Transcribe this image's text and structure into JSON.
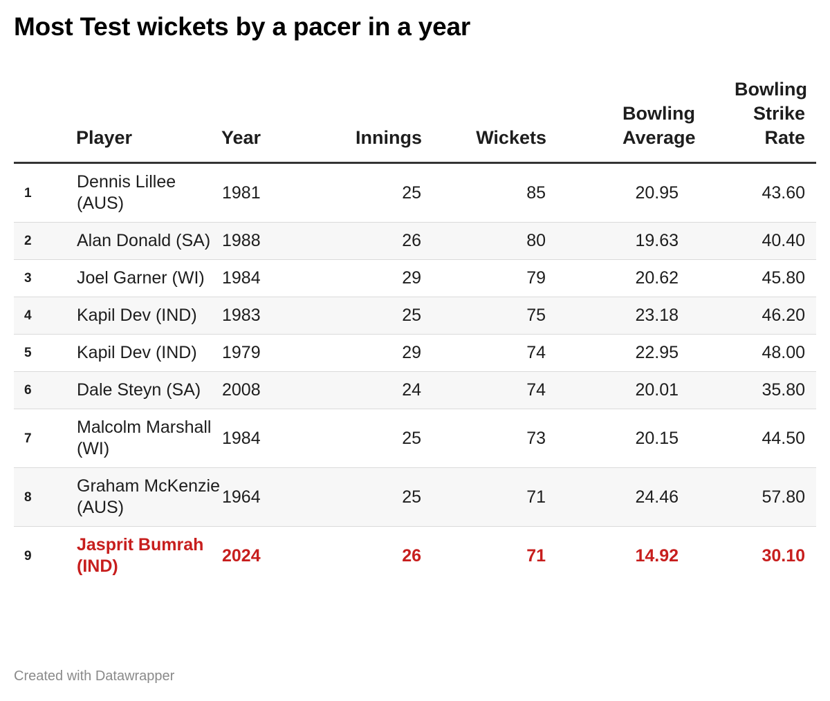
{
  "title": "Most Test wickets by a pacer in a year",
  "footer": "Created with Datawrapper",
  "colors": {
    "highlight": "#c71e1d",
    "stripe": "#f7f7f7",
    "text": "#1d1d1d"
  },
  "chart_data": {
    "type": "table",
    "title": "Most Test wickets by a pacer in a year",
    "columns": [
      "",
      "Player",
      "Year",
      "Innings",
      "Wickets",
      "Bowling Average",
      "Bowling Strike Rate"
    ],
    "rows": [
      {
        "rank": "1",
        "player": "Dennis Lillee (AUS)",
        "year": "1981",
        "innings": "25",
        "wickets": "85",
        "average": "20.95",
        "strike_rate": "43.60",
        "highlight": false
      },
      {
        "rank": "2",
        "player": "Alan Donald (SA)",
        "year": "1988",
        "innings": "26",
        "wickets": "80",
        "average": "19.63",
        "strike_rate": "40.40",
        "highlight": false
      },
      {
        "rank": "3",
        "player": "Joel Garner (WI)",
        "year": "1984",
        "innings": "29",
        "wickets": "79",
        "average": "20.62",
        "strike_rate": "45.80",
        "highlight": false
      },
      {
        "rank": "4",
        "player": "Kapil Dev (IND)",
        "year": "1983",
        "innings": "25",
        "wickets": "75",
        "average": "23.18",
        "strike_rate": "46.20",
        "highlight": false
      },
      {
        "rank": "5",
        "player": "Kapil Dev (IND)",
        "year": "1979",
        "innings": "29",
        "wickets": "74",
        "average": "22.95",
        "strike_rate": "48.00",
        "highlight": false
      },
      {
        "rank": "6",
        "player": "Dale Steyn (SA)",
        "year": "2008",
        "innings": "24",
        "wickets": "74",
        "average": "20.01",
        "strike_rate": "35.80",
        "highlight": false
      },
      {
        "rank": "7",
        "player": "Malcolm Marshall (WI)",
        "year": "1984",
        "innings": "25",
        "wickets": "73",
        "average": "20.15",
        "strike_rate": "44.50",
        "highlight": false
      },
      {
        "rank": "8",
        "player": "Graham McKenzie (AUS)",
        "year": "1964",
        "innings": "25",
        "wickets": "71",
        "average": "24.46",
        "strike_rate": "57.80",
        "highlight": false
      },
      {
        "rank": "9",
        "player": "Jasprit Bumrah (IND)",
        "year": "2024",
        "innings": "26",
        "wickets": "71",
        "average": "14.92",
        "strike_rate": "30.10",
        "highlight": true
      }
    ]
  }
}
